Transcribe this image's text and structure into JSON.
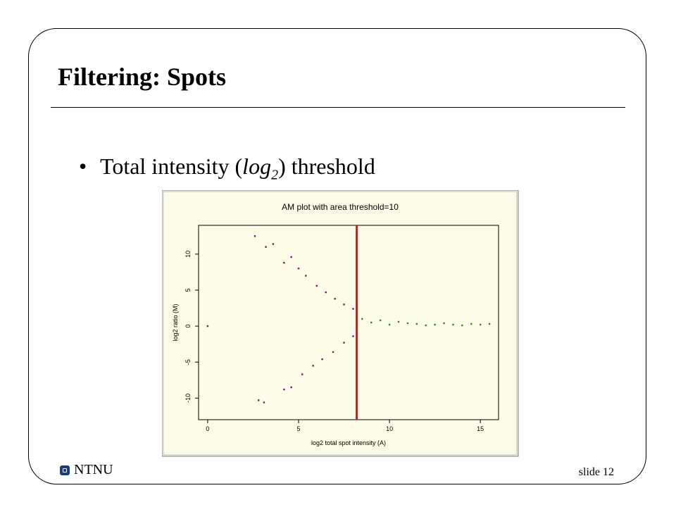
{
  "slide": {
    "title": "Filtering: Spots",
    "bullet": {
      "prefix": "Total intensity (",
      "var": "log",
      "sub": "2",
      "suffix": ") threshold"
    },
    "footer": {
      "logo_text": "NTNU",
      "slide_label": "slide 12"
    }
  },
  "chart_data": {
    "type": "scatter",
    "title": "AM plot with area threshold=10",
    "xlabel": "log2 total spot intensity (A)",
    "ylabel": "log2 ratio (M)",
    "xlim": [
      -0.5,
      16
    ],
    "ylim": [
      -13,
      14
    ],
    "xticks": [
      0,
      5,
      10,
      15
    ],
    "yticks": [
      -10,
      -5,
      0,
      5,
      10
    ],
    "grid": false,
    "threshold_x": 8.2,
    "colors": {
      "below": "#7a1a6a",
      "above": "#2e8b1e",
      "threshold": "#e01010",
      "panel": "#fdfce8"
    },
    "series": [
      {
        "values": [
          [
            2.6,
            12.5
          ],
          [
            3.2,
            11.0
          ],
          [
            3.6,
            11.4
          ],
          [
            4.2,
            8.8
          ],
          [
            4.6,
            9.6
          ],
          [
            5.0,
            8.0
          ],
          [
            5.4,
            7.0
          ],
          [
            6.0,
            5.6
          ],
          [
            6.5,
            4.7
          ],
          [
            7.0,
            3.8
          ],
          [
            7.5,
            3.0
          ],
          [
            8.0,
            2.4
          ],
          [
            2.8,
            -10.3
          ],
          [
            3.1,
            -10.6
          ],
          [
            4.2,
            -8.8
          ],
          [
            4.6,
            -8.5
          ],
          [
            5.2,
            -6.7
          ],
          [
            5.8,
            -5.5
          ],
          [
            6.3,
            -4.6
          ],
          [
            6.9,
            -3.6
          ],
          [
            7.5,
            -2.3
          ],
          [
            8.0,
            -1.4
          ],
          [
            0.0,
            0.0
          ]
        ]
      },
      {
        "values": [
          [
            8.5,
            1.0
          ],
          [
            9.0,
            0.5
          ],
          [
            9.5,
            0.8
          ],
          [
            10.0,
            0.2
          ],
          [
            10.5,
            0.6
          ],
          [
            11.0,
            0.4
          ],
          [
            11.5,
            0.3
          ],
          [
            12.0,
            0.1
          ],
          [
            12.5,
            0.2
          ],
          [
            13.0,
            0.4
          ],
          [
            13.5,
            0.2
          ],
          [
            14.0,
            0.1
          ],
          [
            14.5,
            0.3
          ],
          [
            15.0,
            0.2
          ],
          [
            15.5,
            0.3
          ]
        ]
      }
    ]
  }
}
